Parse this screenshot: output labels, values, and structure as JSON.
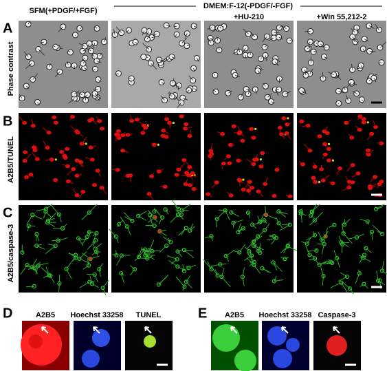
{
  "header": {
    "control": "SFM(+PDGF/+FGF)",
    "group": "DMEM:F-12(-PDGF/-FGF)",
    "treatments": [
      "+HU-210",
      "+Win 55,212-2"
    ]
  },
  "rows": [
    {
      "label": "A",
      "stain": "Phase contrast"
    },
    {
      "label": "B",
      "stain": "A2B5/TUNEL"
    },
    {
      "label": "C",
      "stain": "A2B5/caspase-3"
    }
  ],
  "panel_d": {
    "label": "D",
    "stains": [
      "A2B5",
      "Hoechst 33258",
      "TUNEL"
    ]
  },
  "panel_e": {
    "label": "E",
    "stains": [
      "A2B5",
      "Hoechst 33258",
      "Caspase-3"
    ]
  }
}
